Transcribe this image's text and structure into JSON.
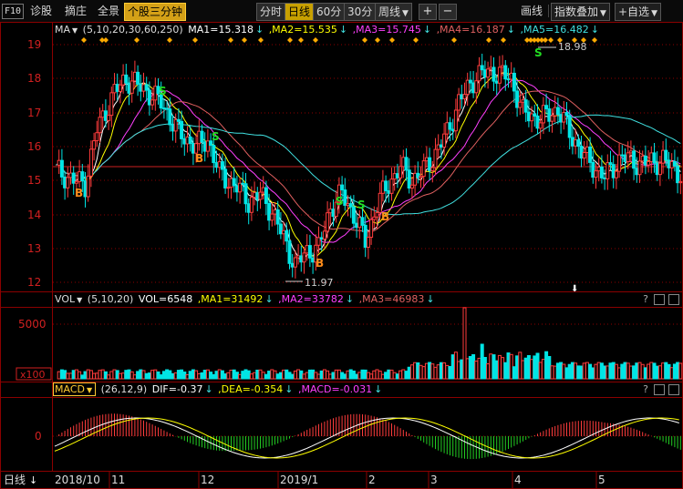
{
  "toolbar": {
    "f10": "F10",
    "diagnose": "诊股",
    "extract": "摘庄",
    "panorama": "全景",
    "minute_stock": "个股三分钟",
    "timeframes": [
      "分时",
      "日线",
      "60分",
      "30分"
    ],
    "active_timeframe": "日线",
    "week": "周线",
    "zoom_in": "+",
    "zoom_out": "−",
    "draw_line": "画线",
    "index_overlay": "指数叠加",
    "self_select": "+自选",
    "colors": {
      "active": "#c8a000"
    }
  },
  "ma_header": {
    "name": "MA",
    "params": "(5,10,20,30,60,250)",
    "ma1": "MA1=15.318",
    "ma2": ",MA2=15.535",
    "ma3": ",MA3=15.745",
    "ma4": ",MA4=16.187",
    "ma5": ",MA5=16.482"
  },
  "vol_header": {
    "name": "VOL",
    "params": "(5,10,20)",
    "vol": "VOL=6548",
    "ma1": ",MA1=31492",
    "ma2": ",MA2=33782",
    "ma3": ",MA3=46983"
  },
  "macd_header": {
    "name": "MACD",
    "params": "(26,12,9)",
    "dif": "DIF=-0.37",
    "dea": ",DEA=-0.354",
    "macd": ",MACD=-0.031"
  },
  "price_axis": [
    "19",
    "18",
    "17",
    "16",
    "15",
    "14",
    "13",
    "12"
  ],
  "vol_axis": [
    "5000",
    "x100"
  ],
  "macd_axis": [
    "0"
  ],
  "date_axis": [
    "2018/10",
    "11",
    "12",
    "2019/1",
    "2",
    "3",
    "4",
    "5"
  ],
  "bottom_label": "日线",
  "annotations": {
    "high": "18.98",
    "low": "11.97"
  },
  "signals": {
    "buy": "B",
    "sell": "S"
  },
  "colors": {
    "up": "#ff3c3c",
    "down": "#00e5e5",
    "ma1": "#ffffff",
    "ma2": "#ffff00",
    "ma3": "#ff40ff",
    "ma4": "#e06060",
    "ma5": "#40e0e0",
    "grid": "#8b0000"
  }
}
